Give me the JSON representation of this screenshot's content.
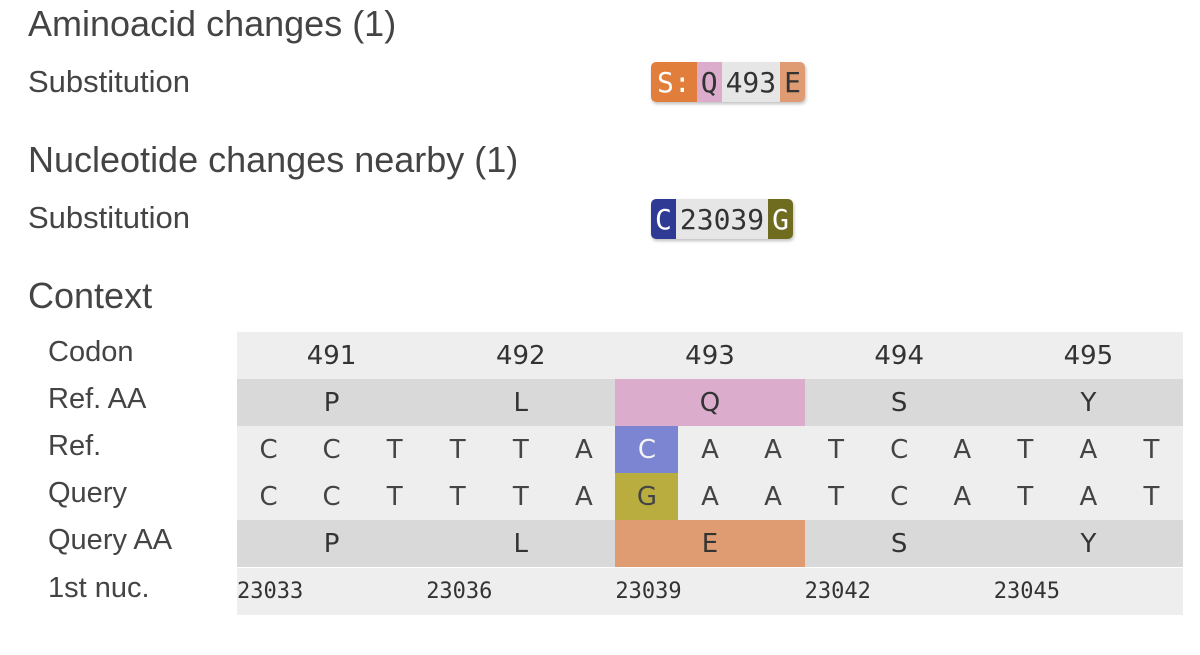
{
  "aa_changes": {
    "heading": "Aminoacid changes (1)",
    "row_label": "Substitution",
    "badge": {
      "gene": "S:",
      "ref": "Q",
      "pos": "493",
      "query": "E"
    }
  },
  "nuc_changes": {
    "heading": "Nucleotide changes nearby (1)",
    "row_label": "Substitution",
    "badge": {
      "ref": "C",
      "pos": "23039",
      "query": "G"
    }
  },
  "context": {
    "heading": "Context",
    "row_labels": {
      "codon": "Codon",
      "ref_aa": "Ref. AA",
      "ref": "Ref.",
      "query": "Query",
      "query_aa": "Query AA",
      "first_nuc": "1st nuc."
    },
    "codons": [
      "491",
      "492",
      "493",
      "494",
      "495"
    ],
    "ref_aa": [
      "P",
      "L",
      "Q",
      "S",
      "Y"
    ],
    "query_aa": [
      "P",
      "L",
      "E",
      "S",
      "Y"
    ],
    "ref_nucs": [
      "C",
      "C",
      "T",
      "T",
      "T",
      "A",
      "C",
      "A",
      "A",
      "T",
      "C",
      "A",
      "T",
      "A",
      "T"
    ],
    "query_nucs": [
      "C",
      "C",
      "T",
      "T",
      "T",
      "A",
      "G",
      "A",
      "A",
      "T",
      "C",
      "A",
      "T",
      "A",
      "T"
    ],
    "first_nuc": [
      "23033",
      "23036",
      "23039",
      "23042",
      "23045"
    ],
    "highlight_codon_index": 2,
    "highlight_nuc_index": 6,
    "colors": {
      "gene": "#e27e3c",
      "ref_aa_Q": "#dcaccd",
      "query_aa_E": "#df9b72",
      "ref_nuc_C": "#7b85d1",
      "query_nuc_G": "#b9ad3f",
      "row_dark": "#d9d9d9",
      "row_light": "#eeeeee"
    }
  }
}
